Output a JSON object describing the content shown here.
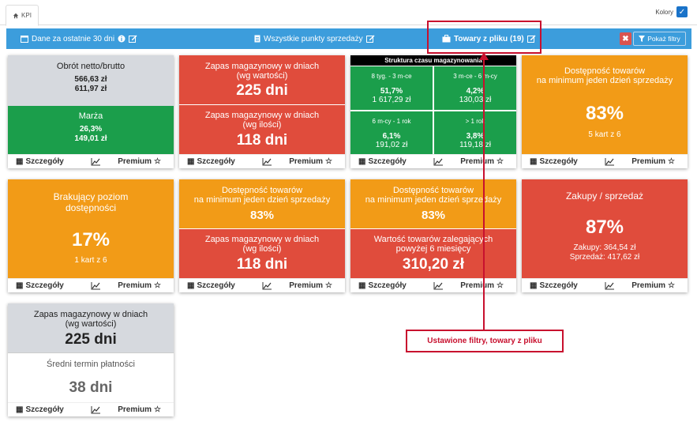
{
  "tab": {
    "label": "KPI"
  },
  "colors_toggle": {
    "label": "Kolory"
  },
  "filters": {
    "period": "Dane za ostatnie 30 dni",
    "points": "Wszystkie punkty sprzedaży",
    "products": "Towary z pliku (19)",
    "show_filters": "Pokaż filtry"
  },
  "footer": {
    "details": "Szczegóły",
    "premium": "Premium"
  },
  "tiles": {
    "t1": {
      "top_label": "Obrót netto/brutto",
      "top_v1": "566,63 zł",
      "top_v2": "611,97 zł",
      "bot_label": "Marża",
      "bot_v1": "26,3%",
      "bot_v2": "149,01 zł"
    },
    "t2": {
      "top_label1": "Zapas magazynowy w dniach",
      "top_label2": "(wg wartości)",
      "top_value": "225 dni",
      "bot_label1": "Zapas magazynowy w dniach",
      "bot_label2": "(wg ilości)",
      "bot_value": "118 dni"
    },
    "t3": {
      "title": "Struktura czasu magazynowania",
      "cells": [
        {
          "label": "8 tyg. - 3 m-ce",
          "pct": "51,7%",
          "amount": "1 617,29 zł"
        },
        {
          "label": "3 m-ce - 6 m-cy",
          "pct": "4,2%",
          "amount": "130,03 zł"
        },
        {
          "label": "6 m-cy - 1 rok",
          "pct": "6,1%",
          "amount": "191,02 zł"
        },
        {
          "label": "> 1 rok",
          "pct": "3,8%",
          "amount": "119,18 zł"
        }
      ]
    },
    "t4": {
      "label1": "Dostępność towarów",
      "label2": "na minimum jeden dzień sprzedaży",
      "value": "83%",
      "sub": "5 kart z 6"
    },
    "t5": {
      "label1": "Brakujący poziom",
      "label2": "dostępności",
      "value": "17%",
      "sub": "1 kart z 6"
    },
    "t6": {
      "top_label1": "Dostępność towarów",
      "top_label2": "na minimum jeden dzień sprzedaży",
      "top_value": "83%",
      "bot_label1": "Zapas magazynowy w dniach",
      "bot_label2": "(wg ilości)",
      "bot_value": "118 dni"
    },
    "t7": {
      "top_label1": "Dostępność towarów",
      "top_label2": "na minimum jeden dzień sprzedaży",
      "top_value": "83%",
      "bot_label1": "Wartość towarów zalegających",
      "bot_label2": "powyżej 6 miesięcy",
      "bot_value": "310,20 zł"
    },
    "t8": {
      "label": "Zakupy / sprzedaż",
      "value": "87%",
      "sub1": "Zakupy: 364,54 zł",
      "sub2": "Sprzedaż: 417,62 zł"
    },
    "t9": {
      "top_label1": "Zapas magazynowy w dniach",
      "top_label2": "(wg wartości)",
      "top_value": "225 dni",
      "bot_label": "Średni termin płatności",
      "bot_value": "38 dni"
    }
  },
  "annotation": {
    "callout": "Ustawione filtry, towary z pliku"
  },
  "colors": {
    "green": "#1b9e4b",
    "red": "#e04c3c",
    "orange": "#f29b17",
    "gray": "#d6d9de",
    "blue": "#3c9ddc",
    "annotation": "#c8102e"
  }
}
